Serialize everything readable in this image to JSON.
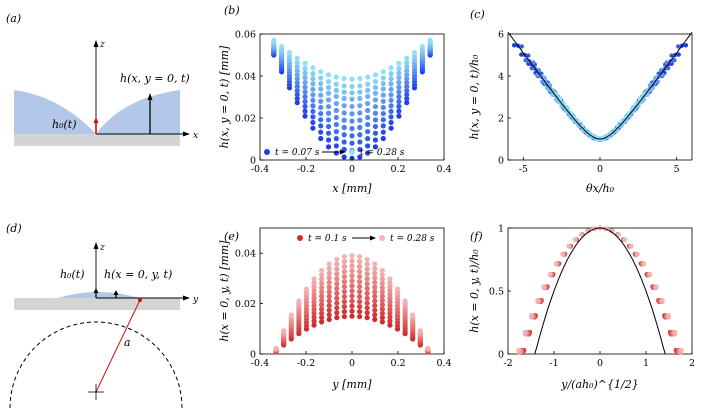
{
  "panels": {
    "a": "(a)",
    "b": "(b)",
    "c": "(c)",
    "d": "(d)",
    "e": "(e)",
    "f": "(f)"
  },
  "schematic_a": {
    "z": "z",
    "x": "x",
    "h0": "h₀(t)",
    "h": "h(x, y = 0, t)"
  },
  "schematic_d": {
    "z": "z",
    "y": "y",
    "h0": "h₀(t)",
    "h": "h(x = 0, y, t)",
    "a": "a"
  },
  "colors": {
    "liquid": "#b3c8e8",
    "substrate": "#d4d4d4",
    "blue_dark": "#1f3ee8",
    "blue_light": "#8fe0f5",
    "red_dark": "#d22a2a",
    "red_light": "#f2b3b3",
    "black": "#000000",
    "arrow_red": "#cc1111"
  },
  "chart_data": [
    {
      "id": "b",
      "type": "scatter",
      "title": "",
      "xlabel": "x [mm]",
      "ylabel": "h(x, y = 0, t) [mm]",
      "xlim": [
        -0.4,
        0.4
      ],
      "ylim": [
        0,
        0.06
      ],
      "xticks": [
        "-0.4",
        "-0.2",
        "0",
        "0.2",
        "0.4"
      ],
      "yticks": [
        "0",
        "0.02",
        "0.04",
        "0.06"
      ],
      "legend": {
        "start": "t = 0.07 s",
        "end": "t = 0.28 s"
      },
      "series_rule": "h = h0 + k*x^2 (blue dark to light)",
      "h0_values": [
        0.0008,
        0.0044,
        0.008,
        0.0115,
        0.015,
        0.0185,
        0.022,
        0.0255,
        0.029,
        0.032,
        0.035,
        0.0385
      ],
      "edge_values": [
        0.05,
        0.0505,
        0.051,
        0.0515,
        0.052,
        0.0525,
        0.053,
        0.0535,
        0.054,
        0.055,
        0.056,
        0.057
      ],
      "x_range": [
        -0.34,
        0.34
      ]
    },
    {
      "id": "c",
      "type": "scatter",
      "xlabel": "θx/h₀",
      "ylabel": "h(x, y = 0, t)/h₀",
      "xlim": [
        -6,
        6
      ],
      "ylim": [
        0,
        6
      ],
      "xticks": [
        "-5",
        "0",
        "5"
      ],
      "yticks": [
        "0",
        "2",
        "4",
        "6"
      ],
      "theory": "sqrt(1 + X^2)"
    },
    {
      "id": "e",
      "type": "scatter",
      "xlabel": "y [mm]",
      "ylabel": "h(x = 0, y, t) [mm]",
      "xlim": [
        -0.4,
        0.4
      ],
      "ylim": [
        0,
        0.05
      ],
      "xticks": [
        "-0.4",
        "-0.2",
        "0",
        "0.2",
        "0.4"
      ],
      "yticks": [
        "0",
        "0.02",
        "0.04"
      ],
      "legend": {
        "start": "t = 0.1 s",
        "end": "t = 0.28 s"
      },
      "peak_values": [
        0.015,
        0.017,
        0.019,
        0.021,
        0.023,
        0.025,
        0.027,
        0.029,
        0.031,
        0.033,
        0.035,
        0.037,
        0.039
      ],
      "y_range": [
        -0.33,
        0.33
      ]
    },
    {
      "id": "f",
      "type": "scatter",
      "xlabel": "y/(ah₀)^{1/2}",
      "ylabel": "h(x = 0, y, t)/h₀",
      "xlim": [
        -2,
        2
      ],
      "ylim": [
        0,
        1
      ],
      "xticks": [
        "-2",
        "-1",
        "0",
        "1",
        "2"
      ],
      "yticks": [
        "0",
        "0.5",
        "1"
      ],
      "theory": "1 - Y^2/2"
    }
  ]
}
